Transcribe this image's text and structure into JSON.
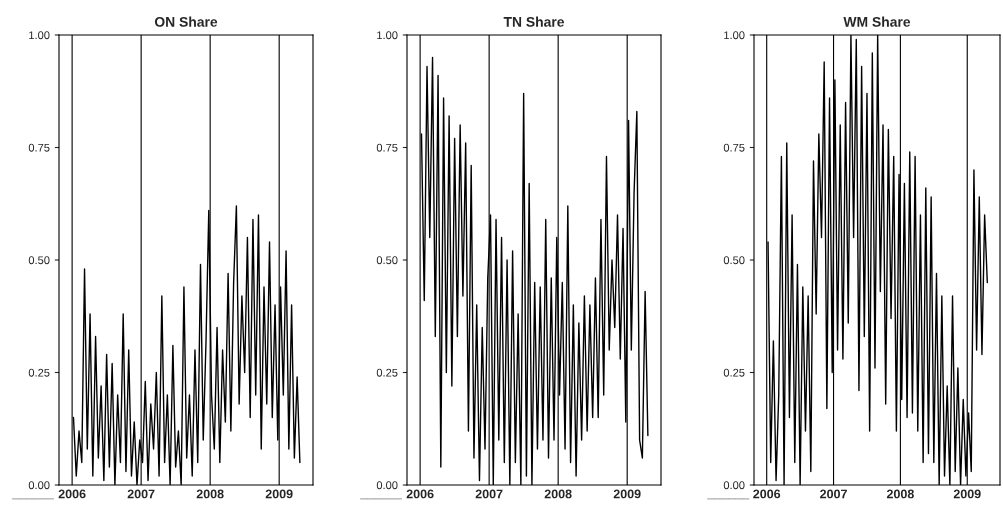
{
  "chart_data": [
    {
      "type": "line",
      "title": "ON Share",
      "color": "#000000",
      "xlim": [
        2005.81,
        2009.49
      ],
      "xticks": [
        2006,
        2007,
        2008,
        2009
      ],
      "ylim": [
        0,
        1
      ],
      "yticks": [
        {
          "value": 0,
          "label": "0.00"
        },
        {
          "value": 0.25,
          "label": "0.25"
        },
        {
          "value": 0.5,
          "label": "0.50"
        },
        {
          "value": 0.75,
          "label": "0.75"
        },
        {
          "value": 1,
          "label": "1.00"
        }
      ],
      "grid": "x",
      "annotations": [
        "______"
      ],
      "x": [
        2006.02,
        2006.06,
        2006.1,
        2006.14,
        2006.18,
        2006.22,
        2006.26,
        2006.3,
        2006.34,
        2006.38,
        2006.42,
        2006.46,
        2006.5,
        2006.54,
        2006.58,
        2006.62,
        2006.66,
        2006.7,
        2006.74,
        2006.78,
        2006.82,
        2006.86,
        2006.9,
        2006.94,
        2006.98,
        2007.02,
        2007.06,
        2007.1,
        2007.14,
        2007.18,
        2007.22,
        2007.26,
        2007.3,
        2007.34,
        2007.38,
        2007.42,
        2007.46,
        2007.5,
        2007.54,
        2007.58,
        2007.62,
        2007.66,
        2007.7,
        2007.74,
        2007.78,
        2007.82,
        2007.86,
        2007.9,
        2007.94,
        2007.98,
        2008.02,
        2008.06,
        2008.1,
        2008.14,
        2008.18,
        2008.22,
        2008.26,
        2008.3,
        2008.34,
        2008.38,
        2008.42,
        2008.46,
        2008.5,
        2008.54,
        2008.58,
        2008.62,
        2008.66,
        2008.7,
        2008.74,
        2008.78,
        2008.82,
        2008.86,
        2008.9,
        2008.94,
        2008.98,
        2009.02,
        2009.06,
        2009.1,
        2009.14,
        2009.18,
        2009.22,
        2009.26,
        2009.3
      ],
      "values": [
        0.15,
        0.02,
        0.12,
        0.05,
        0.48,
        0.08,
        0.38,
        0.02,
        0.33,
        0.06,
        0.22,
        0.01,
        0.29,
        0.04,
        0.27,
        0.0,
        0.2,
        0.05,
        0.38,
        0.03,
        0.3,
        0.02,
        0.14,
        0.0,
        0.1,
        0.05,
        0.23,
        0.01,
        0.18,
        0.08,
        0.25,
        0.02,
        0.42,
        0.05,
        0.2,
        0.0,
        0.31,
        0.04,
        0.12,
        0.0,
        0.44,
        0.06,
        0.2,
        0.02,
        0.3,
        0.05,
        0.49,
        0.1,
        0.32,
        0.61,
        0.2,
        0.08,
        0.35,
        0.05,
        0.3,
        0.14,
        0.47,
        0.12,
        0.45,
        0.62,
        0.18,
        0.42,
        0.25,
        0.55,
        0.15,
        0.59,
        0.2,
        0.6,
        0.08,
        0.44,
        0.18,
        0.54,
        0.15,
        0.4,
        0.1,
        0.44,
        0.2,
        0.52,
        0.08,
        0.4,
        0.06,
        0.24,
        0.05
      ]
    },
    {
      "type": "line",
      "title": "TN Share",
      "color": "#000000",
      "xlim": [
        2005.81,
        2009.49
      ],
      "xticks": [
        2006,
        2007,
        2008,
        2009
      ],
      "ylim": [
        0,
        1
      ],
      "yticks": [
        {
          "value": 0,
          "label": "0.00"
        },
        {
          "value": 0.25,
          "label": "0.25"
        },
        {
          "value": 0.5,
          "label": "0.50"
        },
        {
          "value": 0.75,
          "label": "0.75"
        },
        {
          "value": 1,
          "label": "1.00"
        }
      ],
      "grid": "x",
      "annotations": [
        "______"
      ],
      "x": [
        2006.02,
        2006.06,
        2006.1,
        2006.14,
        2006.18,
        2006.22,
        2006.26,
        2006.3,
        2006.34,
        2006.38,
        2006.42,
        2006.46,
        2006.5,
        2006.54,
        2006.58,
        2006.62,
        2006.66,
        2006.7,
        2006.74,
        2006.78,
        2006.82,
        2006.86,
        2006.9,
        2006.94,
        2006.98,
        2007.02,
        2007.06,
        2007.1,
        2007.14,
        2007.18,
        2007.22,
        2007.26,
        2007.3,
        2007.34,
        2007.38,
        2007.42,
        2007.46,
        2007.5,
        2007.54,
        2007.58,
        2007.62,
        2007.66,
        2007.7,
        2007.74,
        2007.78,
        2007.82,
        2007.86,
        2007.9,
        2007.94,
        2007.98,
        2008.02,
        2008.06,
        2008.1,
        2008.14,
        2008.18,
        2008.22,
        2008.26,
        2008.3,
        2008.34,
        2008.38,
        2008.42,
        2008.46,
        2008.5,
        2008.54,
        2008.58,
        2008.62,
        2008.66,
        2008.7,
        2008.74,
        2008.78,
        2008.82,
        2008.86,
        2008.9,
        2008.94,
        2008.98,
        2009.02,
        2009.06,
        2009.1,
        2009.14,
        2009.18,
        2009.22,
        2009.26,
        2009.3
      ],
      "values": [
        0.78,
        0.41,
        0.93,
        0.55,
        0.95,
        0.33,
        0.91,
        0.04,
        0.86,
        0.25,
        0.82,
        0.22,
        0.77,
        0.33,
        0.8,
        0.42,
        0.76,
        0.12,
        0.71,
        0.06,
        0.4,
        0.01,
        0.35,
        0.08,
        0.46,
        0.6,
        0.0,
        0.59,
        0.1,
        0.55,
        0.05,
        0.5,
        0.0,
        0.52,
        0.05,
        0.38,
        0.0,
        0.87,
        0.02,
        0.67,
        0.0,
        0.45,
        0.08,
        0.44,
        0.1,
        0.59,
        0.06,
        0.46,
        0.1,
        0.55,
        0.2,
        0.45,
        0.08,
        0.62,
        0.05,
        0.4,
        0.02,
        0.36,
        0.1,
        0.42,
        0.12,
        0.4,
        0.15,
        0.46,
        0.15,
        0.59,
        0.2,
        0.73,
        0.3,
        0.5,
        0.35,
        0.6,
        0.28,
        0.57,
        0.14,
        0.81,
        0.3,
        0.65,
        0.83,
        0.1,
        0.06,
        0.43,
        0.11
      ]
    },
    {
      "type": "line",
      "title": "WM Share",
      "color": "#000000",
      "xlim": [
        2005.81,
        2009.49
      ],
      "xticks": [
        2006,
        2007,
        2008,
        2009
      ],
      "ylim": [
        0,
        1
      ],
      "yticks": [
        {
          "value": 0,
          "label": "0.00"
        },
        {
          "value": 0.25,
          "label": "0.25"
        },
        {
          "value": 0.5,
          "label": "0.50"
        },
        {
          "value": 0.75,
          "label": "0.75"
        },
        {
          "value": 1,
          "label": "1.00"
        }
      ],
      "grid": "x",
      "annotations": [
        "______"
      ],
      "x": [
        2006.02,
        2006.06,
        2006.1,
        2006.14,
        2006.18,
        2006.22,
        2006.26,
        2006.3,
        2006.34,
        2006.38,
        2006.42,
        2006.46,
        2006.5,
        2006.54,
        2006.58,
        2006.62,
        2006.66,
        2006.7,
        2006.74,
        2006.78,
        2006.82,
        2006.86,
        2006.9,
        2006.94,
        2006.98,
        2007.02,
        2007.06,
        2007.1,
        2007.14,
        2007.18,
        2007.22,
        2007.26,
        2007.3,
        2007.34,
        2007.38,
        2007.42,
        2007.46,
        2007.5,
        2007.54,
        2007.58,
        2007.62,
        2007.66,
        2007.7,
        2007.74,
        2007.78,
        2007.82,
        2007.86,
        2007.9,
        2007.94,
        2007.98,
        2008.02,
        2008.06,
        2008.1,
        2008.14,
        2008.18,
        2008.22,
        2008.26,
        2008.3,
        2008.34,
        2008.38,
        2008.42,
        2008.46,
        2008.5,
        2008.54,
        2008.58,
        2008.62,
        2008.66,
        2008.7,
        2008.74,
        2008.78,
        2008.82,
        2008.86,
        2008.9,
        2008.94,
        2008.98,
        2009.02,
        2009.06,
        2009.1,
        2009.14,
        2009.18,
        2009.22,
        2009.26,
        2009.3
      ],
      "values": [
        0.54,
        0.05,
        0.32,
        0.01,
        0.2,
        0.73,
        0.0,
        0.76,
        0.15,
        0.6,
        0.05,
        0.49,
        0.0,
        0.44,
        0.12,
        0.42,
        0.03,
        0.72,
        0.38,
        0.78,
        0.55,
        0.94,
        0.17,
        0.86,
        0.25,
        0.9,
        0.3,
        0.8,
        0.28,
        0.85,
        0.36,
        1.0,
        0.55,
        0.99,
        0.21,
        0.93,
        0.33,
        0.87,
        0.12,
        0.96,
        0.26,
        1.0,
        0.43,
        0.8,
        0.18,
        0.79,
        0.37,
        0.73,
        0.12,
        0.69,
        0.19,
        0.67,
        0.15,
        0.74,
        0.16,
        0.73,
        0.12,
        0.6,
        0.05,
        0.66,
        0.07,
        0.64,
        0.05,
        0.47,
        0.0,
        0.42,
        0.02,
        0.22,
        0.0,
        0.42,
        0.03,
        0.26,
        0.0,
        0.19,
        0.02,
        0.16,
        0.03,
        0.7,
        0.3,
        0.64,
        0.29,
        0.6,
        0.45
      ]
    }
  ]
}
